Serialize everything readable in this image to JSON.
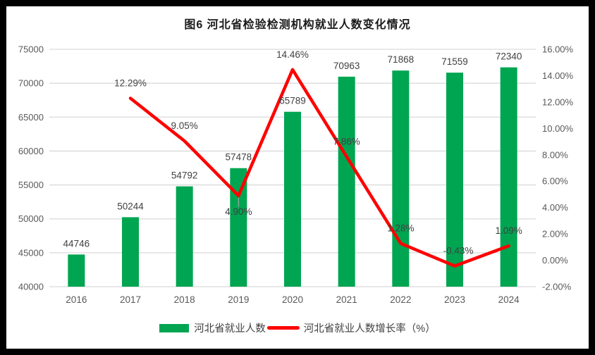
{
  "title": "图6 河北省检验检测机构就业人数变化情况",
  "legend": {
    "items": [
      {
        "label": "河北省就业人数",
        "type": "bar",
        "color": "#00A551"
      },
      {
        "label": "河北省就业人数增长率（%）",
        "type": "line",
        "color": "#FF0000"
      }
    ]
  },
  "colors": {
    "bar_green": "#00A551",
    "line_red": "#FF0000",
    "gridline": "#D9D9D9",
    "axis_text": "#595959",
    "data_label": "#404040",
    "leader_line": "#A6A6A6",
    "frame_border": "#000000"
  },
  "chart_data": {
    "type": "bar",
    "combo": "bar+line",
    "title": "图6 河北省检验检测机构就业人数变化情况",
    "categories": [
      "2016",
      "2017",
      "2018",
      "2019",
      "2020",
      "2021",
      "2022",
      "2023",
      "2024"
    ],
    "series": [
      {
        "name": "河北省就业人数",
        "type": "bar",
        "axis": "left",
        "color": "#00A551",
        "values": [
          44746,
          50244,
          54792,
          57478,
          65789,
          70963,
          71868,
          71559,
          72340
        ],
        "labels": [
          "44746",
          "50244",
          "54792",
          "57478",
          "65789",
          "70963",
          "71868",
          "71559",
          "72340"
        ]
      },
      {
        "name": "河北省就业人数增长率（%）",
        "type": "line",
        "axis": "right",
        "color": "#FF0000",
        "start_category_index": 1,
        "values": [
          12.29,
          9.05,
          4.9,
          14.46,
          7.86,
          1.28,
          -0.43,
          1.09
        ],
        "labels": [
          "12.29%",
          "9.05%",
          "4.90%",
          "14.46%",
          "7.86%",
          "1.28%",
          "-0.43%",
          "1.09%"
        ],
        "label_side": [
          "above",
          "above",
          "below",
          "above",
          "above",
          "above",
          "above",
          "above"
        ]
      }
    ],
    "left_axis": {
      "min": 40000,
      "max": 75000,
      "step": 5000,
      "ticks": [
        "40000",
        "45000",
        "50000",
        "55000",
        "60000",
        "65000",
        "70000",
        "75000"
      ]
    },
    "right_axis": {
      "min": -2,
      "max": 16,
      "step": 2,
      "ticks": [
        "-2.00%",
        "0.00%",
        "2.00%",
        "4.00%",
        "6.00%",
        "8.00%",
        "10.00%",
        "12.00%",
        "14.00%",
        "16.00%"
      ]
    },
    "grid": true,
    "legend_position": "bottom",
    "xlabel": "",
    "ylabel": ""
  }
}
